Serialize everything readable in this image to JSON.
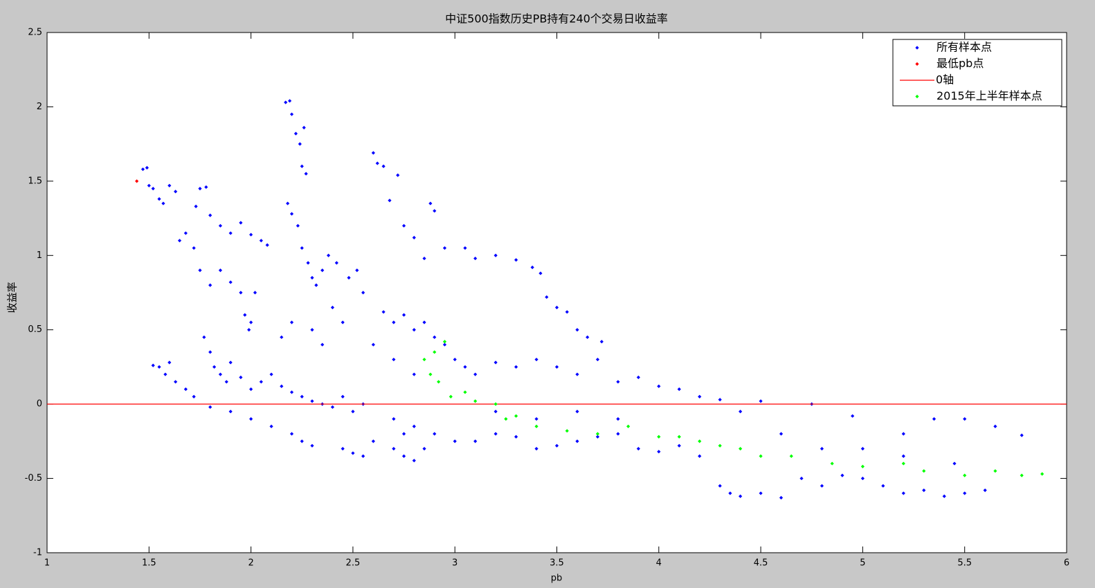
{
  "chart_data": {
    "type": "scatter",
    "title": "中证500指数历史PB持有240个交易日收益率",
    "x_label": "pb",
    "y_label": "收益率",
    "xlim": [
      1,
      6
    ],
    "xticks": [
      1,
      1.5,
      2,
      2.5,
      3,
      3.5,
      4,
      4.5,
      5,
      5.5,
      6
    ],
    "ylim": [
      -1,
      2.5
    ],
    "yticks": [
      -1,
      -0.5,
      0,
      0.5,
      1,
      1.5,
      2,
      2.5
    ],
    "legend": "upper right",
    "series": [
      {
        "name": "所有样本点",
        "color": "#0000ff",
        "style": "points",
        "x": [
          1.47,
          1.49,
          1.5,
          1.52,
          1.55,
          1.57,
          1.6,
          1.63,
          1.75,
          1.78,
          1.73,
          1.8,
          1.85,
          1.9,
          1.95,
          2.0,
          2.05,
          2.08,
          1.65,
          1.68,
          1.72,
          1.75,
          1.8,
          1.85,
          1.9,
          1.95,
          1.97,
          2.0,
          2.02,
          1.99,
          2.17,
          2.19,
          2.2,
          2.22,
          2.24,
          2.26,
          2.25,
          2.27,
          2.18,
          2.2,
          2.23,
          2.25,
          2.28,
          2.3,
          2.32,
          2.35,
          2.38,
          2.42,
          2.48,
          2.52,
          2.55,
          2.4,
          2.45,
          2.3,
          2.35,
          2.2,
          2.15,
          2.6,
          2.62,
          2.65,
          2.68,
          2.72,
          2.75,
          2.8,
          2.88,
          2.9,
          2.85,
          2.95,
          3.05,
          3.1,
          3.2,
          3.3,
          3.38,
          3.42,
          3.45,
          3.5,
          3.55,
          3.6,
          3.65,
          3.72,
          2.65,
          2.7,
          2.75,
          2.8,
          2.85,
          2.9,
          2.95,
          3.0,
          3.05,
          3.1,
          3.2,
          3.3,
          3.4,
          3.5,
          3.6,
          3.7,
          3.8,
          3.9,
          4.0,
          4.1,
          4.2,
          2.7,
          2.8,
          2.6,
          1.52,
          1.55,
          1.58,
          1.6,
          1.63,
          1.68,
          1.72,
          1.77,
          1.8,
          1.82,
          1.85,
          1.88,
          1.9,
          1.95,
          2.0,
          2.05,
          2.1,
          2.15,
          2.2,
          2.25,
          2.3,
          2.35,
          2.4,
          2.45,
          2.5,
          2.55,
          1.8,
          1.9,
          2.0,
          2.1,
          2.2,
          2.25,
          2.3,
          2.45,
          2.5,
          2.55,
          2.6,
          2.7,
          2.75,
          2.8,
          2.85,
          2.7,
          2.75,
          2.8,
          2.9,
          3.0,
          3.1,
          3.2,
          3.3,
          3.4,
          3.5,
          3.6,
          3.7,
          3.8,
          3.9,
          4.0,
          4.1,
          4.2,
          3.2,
          3.4,
          3.6,
          3.8,
          4.3,
          4.4,
          4.5,
          4.3,
          4.35,
          4.4,
          4.5,
          4.6,
          4.7,
          4.8,
          4.9,
          5.0,
          5.1,
          5.2,
          5.3,
          5.4,
          5.5,
          5.6,
          4.75,
          4.95,
          5.2,
          5.35,
          5.5,
          5.65,
          5.78,
          4.6,
          4.8,
          5.0,
          5.2,
          5.45
        ],
        "values": [
          1.58,
          1.59,
          1.47,
          1.45,
          1.38,
          1.35,
          1.47,
          1.43,
          1.45,
          1.46,
          1.33,
          1.27,
          1.2,
          1.15,
          1.22,
          1.14,
          1.1,
          1.07,
          1.1,
          1.15,
          1.05,
          0.9,
          0.8,
          0.9,
          0.82,
          0.75,
          0.6,
          0.55,
          0.75,
          0.5,
          2.03,
          2.04,
          1.95,
          1.82,
          1.75,
          1.86,
          1.6,
          1.55,
          1.35,
          1.28,
          1.2,
          1.05,
          0.95,
          0.85,
          0.8,
          0.9,
          1.0,
          0.95,
          0.85,
          0.9,
          0.75,
          0.65,
          0.55,
          0.5,
          0.4,
          0.55,
          0.45,
          1.69,
          1.62,
          1.6,
          1.37,
          1.54,
          1.2,
          1.12,
          1.35,
          1.3,
          0.98,
          1.05,
          1.05,
          0.98,
          1.0,
          0.97,
          0.92,
          0.88,
          0.72,
          0.65,
          0.62,
          0.5,
          0.45,
          0.42,
          0.62,
          0.55,
          0.6,
          0.5,
          0.55,
          0.45,
          0.4,
          0.3,
          0.25,
          0.2,
          0.28,
          0.25,
          0.3,
          0.25,
          0.2,
          0.3,
          0.15,
          0.18,
          0.12,
          0.1,
          0.05,
          0.3,
          0.2,
          0.4,
          0.26,
          0.25,
          0.2,
          0.28,
          0.15,
          0.1,
          0.05,
          0.45,
          0.35,
          0.25,
          0.2,
          0.15,
          0.28,
          0.18,
          0.1,
          0.15,
          0.2,
          0.12,
          0.08,
          0.05,
          0.02,
          0.0,
          -0.02,
          0.05,
          -0.05,
          0.0,
          -0.02,
          -0.05,
          -0.1,
          -0.15,
          -0.2,
          -0.25,
          -0.28,
          -0.3,
          -0.33,
          -0.35,
          -0.25,
          -0.3,
          -0.35,
          -0.38,
          -0.3,
          -0.1,
          -0.2,
          -0.15,
          -0.2,
          -0.25,
          -0.25,
          -0.2,
          -0.22,
          -0.3,
          -0.28,
          -0.25,
          -0.22,
          -0.2,
          -0.3,
          -0.32,
          -0.28,
          -0.35,
          -0.05,
          -0.1,
          -0.05,
          -0.1,
          0.03,
          -0.05,
          0.02,
          -0.55,
          -0.6,
          -0.62,
          -0.6,
          -0.63,
          -0.5,
          -0.55,
          -0.48,
          -0.5,
          -0.55,
          -0.6,
          -0.58,
          -0.62,
          -0.6,
          -0.58,
          0.0,
          -0.08,
          -0.2,
          -0.1,
          -0.1,
          -0.15,
          -0.21,
          -0.2,
          -0.3,
          -0.3,
          -0.35,
          -0.4
        ]
      },
      {
        "name": "最低pb点",
        "color": "#ff0000",
        "style": "points",
        "x": [
          1.44
        ],
        "values": [
          1.5
        ]
      },
      {
        "name": "0轴",
        "color": "#ff0000",
        "style": "line",
        "x": [
          1,
          6
        ],
        "values": [
          0,
          0
        ]
      },
      {
        "name": "2015年上半年样本点",
        "color": "#00ff00",
        "style": "points",
        "x": [
          2.85,
          2.9,
          2.95,
          2.88,
          2.92,
          2.98,
          3.05,
          3.1,
          3.2,
          3.25,
          3.3,
          3.4,
          3.55,
          3.7,
          3.85,
          4.0,
          4.1,
          4.2,
          4.3,
          4.4,
          4.5,
          4.65,
          4.85,
          5.0,
          5.2,
          5.3,
          5.5,
          5.65,
          5.78,
          5.88
        ],
        "values": [
          0.3,
          0.35,
          0.42,
          0.2,
          0.15,
          0.05,
          0.08,
          0.02,
          0.0,
          -0.1,
          -0.08,
          -0.15,
          -0.18,
          -0.2,
          -0.15,
          -0.22,
          -0.22,
          -0.25,
          -0.28,
          -0.3,
          -0.35,
          -0.35,
          -0.4,
          -0.42,
          -0.4,
          -0.45,
          -0.48,
          -0.45,
          -0.48,
          -0.47
        ]
      }
    ]
  }
}
